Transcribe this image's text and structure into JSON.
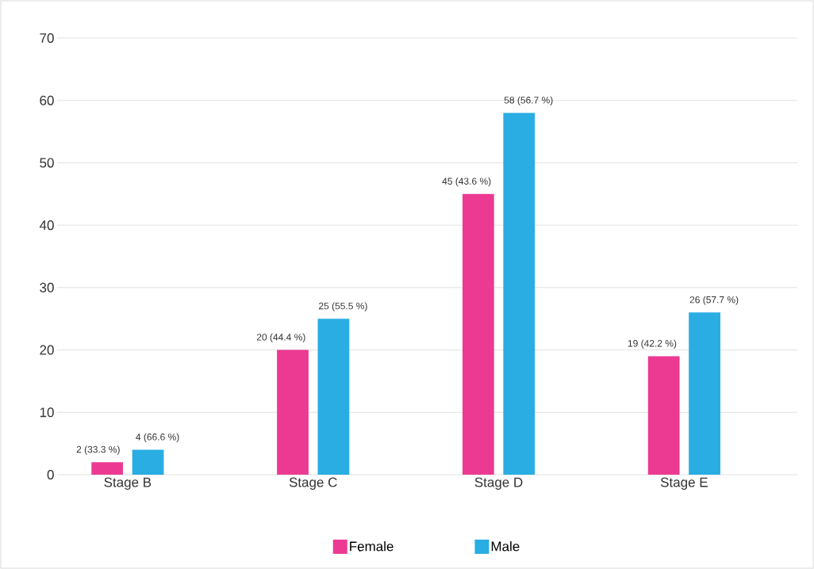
{
  "chart_data": {
    "type": "bar",
    "categories": [
      "Stage B",
      "Stage C",
      "Stage D",
      "Stage E"
    ],
    "series": [
      {
        "name": "Female",
        "color": "#ec3a92",
        "values": [
          2,
          20,
          45,
          19
        ],
        "value_labels": [
          "2 (33.3 %)",
          "20 (44.4 %)",
          "45 (43.6 %)",
          "19 (42.2 %)"
        ]
      },
      {
        "name": "Male",
        "color": "#29ade3",
        "values": [
          4,
          25,
          58,
          26
        ],
        "value_labels": [
          "4 (66.6 %)",
          "25 (55.5 %)",
          "58 (56.7 %)",
          "26 (57.7 %)"
        ]
      }
    ],
    "ylim": [
      0,
      70
    ],
    "yticks": [
      0,
      10,
      20,
      30,
      40,
      50,
      60,
      70
    ],
    "grid": "y",
    "legend": "bottom"
  }
}
